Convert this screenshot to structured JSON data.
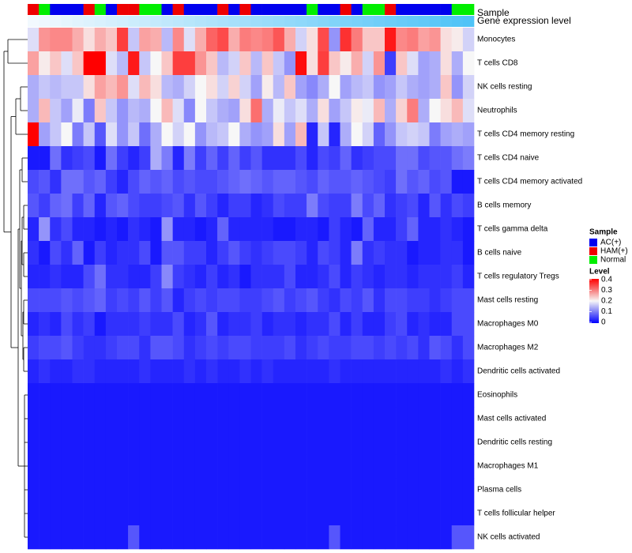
{
  "chart_data": {
    "type": "heatmap",
    "title": "",
    "annotation_tracks": [
      "Sample",
      "Gene expression level"
    ],
    "rows": [
      "Monocytes",
      "T cells CD8",
      "NK cells resting",
      "Neutrophils",
      "T cells CD4 memory resting",
      "T cells CD4 naive",
      "T cells CD4 memory activated",
      "B cells memory",
      "T cells gamma delta",
      "B cells naive",
      "T cells regulatory  Tregs",
      "Mast cells resting",
      "Macrophages M0",
      "Macrophages M2",
      "Dendritic cells activated",
      "Eosinophils",
      "Mast cells activated",
      "Dendritic cells resting",
      "Macrophages M1",
      "Plasma cells",
      "T cells follicular helper",
      "NK cells activated"
    ],
    "sample_groups": [
      "HAM(+)",
      "Normal",
      "AC(+)",
      "AC(+)",
      "AC(+)",
      "HAM(+)",
      "Normal",
      "AC(+)",
      "HAM(+)",
      "HAM(+)",
      "Normal",
      "Normal",
      "AC(+)",
      "HAM(+)",
      "AC(+)",
      "AC(+)",
      "AC(+)",
      "HAM(+)",
      "AC(+)",
      "HAM(+)",
      "AC(+)",
      "AC(+)",
      "AC(+)",
      "AC(+)",
      "AC(+)",
      "Normal",
      "AC(+)",
      "AC(+)",
      "HAM(+)",
      "AC(+)",
      "Normal",
      "Normal",
      "HAM(+)",
      "AC(+)",
      "AC(+)",
      "AC(+)",
      "AC(+)",
      "AC(+)",
      "Normal",
      "Normal"
    ],
    "expression_levels": [
      0.01,
      0.02,
      0.03,
      0.04,
      0.05,
      0.06,
      0.07,
      0.08,
      0.09,
      0.1,
      0.11,
      0.12,
      0.13,
      0.14,
      0.15,
      0.16,
      0.17,
      0.18,
      0.19,
      0.2,
      0.21,
      0.22,
      0.23,
      0.24,
      0.25,
      0.26,
      0.27,
      0.28,
      0.29,
      0.3,
      0.31,
      0.32,
      0.33,
      0.34,
      0.35,
      0.36,
      0.37,
      0.38,
      0.39,
      0.4
    ],
    "values": [
      [
        0.18,
        0.28,
        0.29,
        0.29,
        0.26,
        0.22,
        0.26,
        0.24,
        0.35,
        0.16,
        0.27,
        0.26,
        0.15,
        0.29,
        0.18,
        0.26,
        0.32,
        0.34,
        0.26,
        0.3,
        0.29,
        0.3,
        0.33,
        0.26,
        0.17,
        0.22,
        0.34,
        0.12,
        0.36,
        0.3,
        0.24,
        0.24,
        0.38,
        0.29,
        0.3,
        0.27,
        0.28,
        0.22,
        0.21,
        0.17
      ],
      [
        0.27,
        0.21,
        0.24,
        0.18,
        0.24,
        0.4,
        0.4,
        0.18,
        0.15,
        0.38,
        0.16,
        0.2,
        0.24,
        0.35,
        0.35,
        0.28,
        0.24,
        0.15,
        0.17,
        0.24,
        0.15,
        0.24,
        0.16,
        0.12,
        0.39,
        0.22,
        0.35,
        0.24,
        0.21,
        0.26,
        0.17,
        0.28,
        0.05,
        0.24,
        0.18,
        0.13,
        0.14,
        0.22,
        0.14,
        0.2
      ],
      [
        0.14,
        0.16,
        0.15,
        0.16,
        0.16,
        0.22,
        0.27,
        0.25,
        0.28,
        0.18,
        0.25,
        0.22,
        0.15,
        0.14,
        0.17,
        0.2,
        0.22,
        0.17,
        0.23,
        0.17,
        0.13,
        0.21,
        0.15,
        0.24,
        0.13,
        0.11,
        0.14,
        0.2,
        0.13,
        0.15,
        0.16,
        0.12,
        0.13,
        0.16,
        0.14,
        0.13,
        0.14,
        0.24,
        0.12,
        0.17
      ],
      [
        0.14,
        0.25,
        0.16,
        0.13,
        0.19,
        0.1,
        0.24,
        0.16,
        0.12,
        0.15,
        0.14,
        0.2,
        0.25,
        0.18,
        0.11,
        0.2,
        0.16,
        0.14,
        0.13,
        0.22,
        0.31,
        0.14,
        0.19,
        0.16,
        0.18,
        0.14,
        0.22,
        0.13,
        0.16,
        0.21,
        0.19,
        0.25,
        0.14,
        0.23,
        0.3,
        0.14,
        0.2,
        0.22,
        0.25,
        0.18
      ],
      [
        0.4,
        0.13,
        0.16,
        0.2,
        0.1,
        0.16,
        0.07,
        0.18,
        0.12,
        0.16,
        0.09,
        0.14,
        0.2,
        0.17,
        0.2,
        0.12,
        0.15,
        0.16,
        0.2,
        0.14,
        0.12,
        0.13,
        0.22,
        0.13,
        0.25,
        0.03,
        0.16,
        0.03,
        0.14,
        0.2,
        0.17,
        0.08,
        0.12,
        0.16,
        0.17,
        0.16,
        0.1,
        0.13,
        0.14,
        0.13
      ],
      [
        0.02,
        0.02,
        0.09,
        0.04,
        0.05,
        0.06,
        0.02,
        0.09,
        0.05,
        0.03,
        0.05,
        0.14,
        0.1,
        0.03,
        0.1,
        0.05,
        0.08,
        0.05,
        0.08,
        0.05,
        0.07,
        0.04,
        0.04,
        0.04,
        0.06,
        0.03,
        0.06,
        0.05,
        0.08,
        0.04,
        0.05,
        0.06,
        0.06,
        0.09,
        0.09,
        0.06,
        0.07,
        0.07,
        0.09,
        0.1
      ],
      [
        0.06,
        0.07,
        0.04,
        0.09,
        0.09,
        0.07,
        0.08,
        0.05,
        0.03,
        0.06,
        0.08,
        0.07,
        0.08,
        0.06,
        0.07,
        0.06,
        0.06,
        0.07,
        0.08,
        0.09,
        0.08,
        0.07,
        0.08,
        0.08,
        0.07,
        0.06,
        0.08,
        0.07,
        0.07,
        0.08,
        0.07,
        0.06,
        0.05,
        0.09,
        0.07,
        0.08,
        0.06,
        0.07,
        0.02,
        0.02
      ],
      [
        0.07,
        0.05,
        0.08,
        0.09,
        0.05,
        0.08,
        0.03,
        0.07,
        0.08,
        0.06,
        0.05,
        0.05,
        0.06,
        0.07,
        0.04,
        0.07,
        0.05,
        0.03,
        0.05,
        0.05,
        0.03,
        0.04,
        0.06,
        0.05,
        0.05,
        0.1,
        0.06,
        0.05,
        0.05,
        0.1,
        0.06,
        0.08,
        0.04,
        0.05,
        0.06,
        0.03,
        0.07,
        0.04,
        0.06,
        0.05
      ],
      [
        0.03,
        0.12,
        0.04,
        0.06,
        0.03,
        0.03,
        0.02,
        0.03,
        0.02,
        0.04,
        0.03,
        0.02,
        0.12,
        0.03,
        0.03,
        0.02,
        0.03,
        0.08,
        0.03,
        0.03,
        0.03,
        0.03,
        0.02,
        0.02,
        0.03,
        0.03,
        0.02,
        0.05,
        0.03,
        0.02,
        0.08,
        0.03,
        0.03,
        0.05,
        0.08,
        0.03,
        0.03,
        0.04,
        0.03,
        0.02
      ],
      [
        0.04,
        0.02,
        0.06,
        0.04,
        0.08,
        0.02,
        0.05,
        0.03,
        0.04,
        0.04,
        0.06,
        0.02,
        0.07,
        0.07,
        0.05,
        0.05,
        0.03,
        0.05,
        0.07,
        0.05,
        0.04,
        0.05,
        0.06,
        0.06,
        0.05,
        0.03,
        0.06,
        0.05,
        0.03,
        0.1,
        0.04,
        0.05,
        0.04,
        0.04,
        0.02,
        0.03,
        0.03,
        0.04,
        0.04,
        0.02
      ],
      [
        0.03,
        0.03,
        0.04,
        0.03,
        0.03,
        0.06,
        0.09,
        0.04,
        0.04,
        0.03,
        0.03,
        0.05,
        0.11,
        0.05,
        0.04,
        0.03,
        0.05,
        0.03,
        0.04,
        0.02,
        0.04,
        0.04,
        0.04,
        0.06,
        0.03,
        0.03,
        0.04,
        0.06,
        0.03,
        0.05,
        0.04,
        0.03,
        0.04,
        0.04,
        0.03,
        0.04,
        0.04,
        0.04,
        0.05,
        0.03
      ],
      [
        0.06,
        0.06,
        0.06,
        0.07,
        0.06,
        0.07,
        0.08,
        0.05,
        0.06,
        0.05,
        0.07,
        0.05,
        0.07,
        0.03,
        0.05,
        0.06,
        0.05,
        0.06,
        0.06,
        0.05,
        0.05,
        0.06,
        0.07,
        0.05,
        0.06,
        0.07,
        0.05,
        0.04,
        0.06,
        0.05,
        0.07,
        0.04,
        0.06,
        0.06,
        0.05,
        0.05,
        0.04,
        0.05,
        0.06,
        0.06
      ],
      [
        0.03,
        0.04,
        0.03,
        0.06,
        0.04,
        0.05,
        0.02,
        0.04,
        0.04,
        0.04,
        0.05,
        0.04,
        0.04,
        0.06,
        0.03,
        0.04,
        0.07,
        0.03,
        0.04,
        0.04,
        0.05,
        0.03,
        0.04,
        0.04,
        0.03,
        0.04,
        0.04,
        0.06,
        0.03,
        0.05,
        0.03,
        0.03,
        0.05,
        0.06,
        0.03,
        0.04,
        0.03,
        0.03,
        0.06,
        0.06
      ],
      [
        0.05,
        0.06,
        0.06,
        0.07,
        0.05,
        0.04,
        0.04,
        0.05,
        0.06,
        0.06,
        0.04,
        0.07,
        0.07,
        0.06,
        0.04,
        0.05,
        0.06,
        0.05,
        0.06,
        0.06,
        0.05,
        0.05,
        0.05,
        0.06,
        0.04,
        0.05,
        0.06,
        0.05,
        0.05,
        0.06,
        0.06,
        0.05,
        0.06,
        0.05,
        0.06,
        0.04,
        0.07,
        0.06,
        0.04,
        0.06
      ],
      [
        0.03,
        0.04,
        0.03,
        0.03,
        0.04,
        0.04,
        0.03,
        0.03,
        0.03,
        0.03,
        0.04,
        0.03,
        0.03,
        0.03,
        0.04,
        0.03,
        0.04,
        0.03,
        0.03,
        0.04,
        0.03,
        0.04,
        0.03,
        0.03,
        0.03,
        0.03,
        0.03,
        0.04,
        0.03,
        0.03,
        0.03,
        0.03,
        0.03,
        0.03,
        0.03,
        0.03,
        0.03,
        0.04,
        0.03,
        0.04
      ],
      [
        0.02,
        0.02,
        0.02,
        0.02,
        0.02,
        0.02,
        0.02,
        0.02,
        0.02,
        0.02,
        0.02,
        0.02,
        0.02,
        0.02,
        0.02,
        0.02,
        0.02,
        0.02,
        0.02,
        0.02,
        0.02,
        0.02,
        0.02,
        0.02,
        0.02,
        0.02,
        0.02,
        0.02,
        0.02,
        0.02,
        0.02,
        0.02,
        0.02,
        0.02,
        0.02,
        0.02,
        0.02,
        0.02,
        0.02,
        0.02
      ],
      [
        0.02,
        0.02,
        0.02,
        0.02,
        0.02,
        0.02,
        0.02,
        0.02,
        0.02,
        0.02,
        0.02,
        0.02,
        0.02,
        0.02,
        0.02,
        0.02,
        0.02,
        0.02,
        0.02,
        0.02,
        0.02,
        0.02,
        0.02,
        0.02,
        0.02,
        0.02,
        0.02,
        0.02,
        0.02,
        0.02,
        0.02,
        0.02,
        0.02,
        0.02,
        0.02,
        0.02,
        0.02,
        0.02,
        0.02,
        0.02
      ],
      [
        0.02,
        0.02,
        0.02,
        0.02,
        0.02,
        0.02,
        0.02,
        0.02,
        0.02,
        0.02,
        0.02,
        0.02,
        0.02,
        0.02,
        0.02,
        0.02,
        0.02,
        0.02,
        0.02,
        0.02,
        0.02,
        0.02,
        0.02,
        0.02,
        0.02,
        0.02,
        0.02,
        0.02,
        0.02,
        0.02,
        0.02,
        0.02,
        0.02,
        0.02,
        0.02,
        0.02,
        0.02,
        0.02,
        0.02,
        0.02
      ],
      [
        0.02,
        0.02,
        0.02,
        0.02,
        0.02,
        0.02,
        0.02,
        0.02,
        0.02,
        0.02,
        0.02,
        0.02,
        0.02,
        0.02,
        0.02,
        0.02,
        0.02,
        0.02,
        0.02,
        0.02,
        0.02,
        0.02,
        0.02,
        0.02,
        0.02,
        0.02,
        0.02,
        0.02,
        0.02,
        0.02,
        0.02,
        0.02,
        0.02,
        0.02,
        0.02,
        0.02,
        0.02,
        0.02,
        0.02,
        0.02
      ],
      [
        0.02,
        0.02,
        0.02,
        0.02,
        0.02,
        0.02,
        0.02,
        0.02,
        0.02,
        0.02,
        0.02,
        0.02,
        0.02,
        0.02,
        0.02,
        0.02,
        0.02,
        0.02,
        0.02,
        0.02,
        0.02,
        0.02,
        0.02,
        0.02,
        0.02,
        0.02,
        0.02,
        0.02,
        0.02,
        0.02,
        0.02,
        0.02,
        0.02,
        0.02,
        0.02,
        0.02,
        0.02,
        0.02,
        0.02,
        0.02
      ],
      [
        0.02,
        0.02,
        0.02,
        0.02,
        0.02,
        0.02,
        0.02,
        0.02,
        0.02,
        0.02,
        0.02,
        0.02,
        0.02,
        0.02,
        0.02,
        0.02,
        0.02,
        0.02,
        0.02,
        0.02,
        0.02,
        0.02,
        0.02,
        0.02,
        0.02,
        0.02,
        0.02,
        0.02,
        0.02,
        0.02,
        0.02,
        0.02,
        0.02,
        0.02,
        0.02,
        0.02,
        0.02,
        0.02,
        0.02,
        0.02
      ],
      [
        0.02,
        0.02,
        0.02,
        0.02,
        0.02,
        0.02,
        0.02,
        0.02,
        0.02,
        0.07,
        0.02,
        0.02,
        0.02,
        0.02,
        0.02,
        0.02,
        0.02,
        0.02,
        0.02,
        0.02,
        0.02,
        0.02,
        0.02,
        0.02,
        0.02,
        0.02,
        0.02,
        0.07,
        0.02,
        0.02,
        0.02,
        0.02,
        0.02,
        0.02,
        0.02,
        0.02,
        0.02,
        0.02,
        0.07,
        0.07
      ]
    ],
    "legend": {
      "sample_title": "Sample",
      "sample_entries": [
        {
          "label": "AC(+)",
          "color": "#0000ee"
        },
        {
          "label": "HAM(+)",
          "color": "#ee0000"
        },
        {
          "label": "Normal",
          "color": "#00ee00"
        }
      ],
      "level_title": "Level",
      "level_ticks": [
        "0.4",
        "0.3",
        "0.2",
        "0.1",
        "0"
      ],
      "level_range": [
        0,
        0.4
      ],
      "placement": "right"
    },
    "colors": {
      "low": "#0000ff",
      "mid": "#f7f7f7",
      "high": "#ff0000",
      "expr_low": "#f2f9fe",
      "expr_high": "#4fc3f7"
    },
    "dendrogram": "row clustering tree"
  }
}
